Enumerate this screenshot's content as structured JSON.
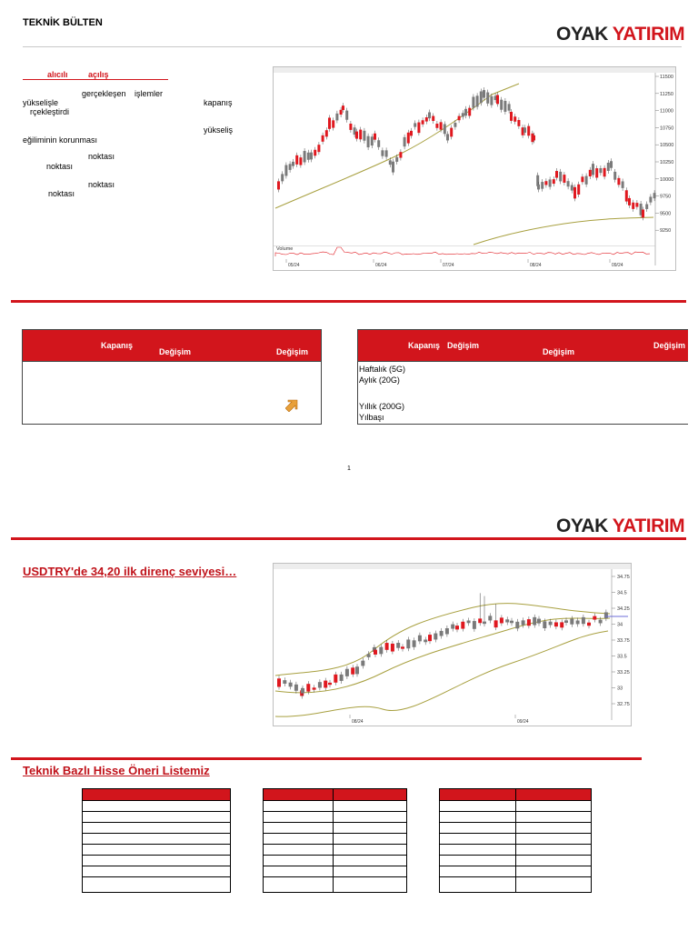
{
  "header": {
    "title": "TEKNİK BÜLTEN",
    "logo_oyak": "OYAK",
    "logo_yatirim": "YATIRIM"
  },
  "left_notes": {
    "underlined_1": "alıcılı",
    "underlined_2": "açılış",
    "w_gerceklesen": "gerçekleşen",
    "w_islemler": "işlemler",
    "w_yukselisle": "yükselişle",
    "w_gerceklestirdi": "rçekleştirdi",
    "w_kapanis": "kapanış",
    "w_yukselis": "yükseliş",
    "w_egilim": "eğiliminin korunması",
    "w_noktasi_1": "noktası",
    "w_noktasi_2": "noktası",
    "w_noktasi_3": "noktası",
    "w_noktasi_4": "noktası"
  },
  "chart1": {
    "volume_label": "Volume",
    "price_ticks": [
      "11500",
      "11250",
      "11000",
      "10750",
      "10500",
      "10250",
      "10000",
      "9750",
      "9500",
      "9250"
    ],
    "date_ticks": [
      "05/24",
      "06/24",
      "07/24",
      "08/24",
      "09/24"
    ]
  },
  "table_left": {
    "h_kapanis": "Kapanış",
    "h_degisim_1": "Değişim",
    "h_degisim_2": "Değişim",
    "arrow_icon": "up-right-arrow"
  },
  "table_right": {
    "h_kapanis": "Kapanış",
    "h_degisim_1": "Değişim",
    "h_degisim_2": "Değişim",
    "h_degisim_3": "Değişim",
    "rows": [
      "Haftalık (5G)",
      "Aylık (20G)",
      "Yıllık (200G)",
      "Yılbaşı"
    ]
  },
  "page_number": "1",
  "section_usdtry": {
    "title": "USDTRY'de 34,20 ilk direnç seviyesi…",
    "price_ticks": [
      "34.75",
      "34.5",
      "34.25",
      "34",
      "33.75",
      "33.5",
      "33.25",
      "33",
      "32.75"
    ],
    "date_ticks": [
      "08/24",
      "09/24"
    ]
  },
  "section_list": {
    "title": "Teknik Bazlı Hisse Öneri Listemiz"
  },
  "colors": {
    "brand_red": "#d2151c",
    "candle_up": "#7a7a7a",
    "candle_down": "#e0181f",
    "ma_line": "#a8a040"
  }
}
